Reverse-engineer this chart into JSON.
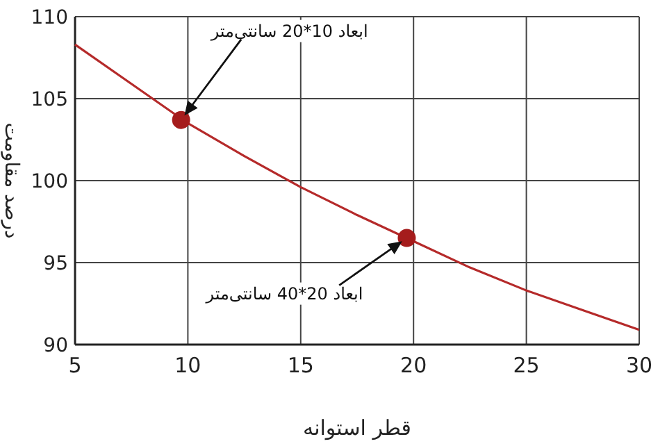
{
  "chart_data": {
    "type": "line",
    "xlabel": "قطر استوانه",
    "ylabel": "درصد مقاومت",
    "xlim": [
      5,
      30
    ],
    "ylim": [
      90,
      110
    ],
    "xticks": [
      5,
      10,
      15,
      20,
      25,
      30
    ],
    "yticks": [
      90,
      95,
      100,
      105,
      110
    ],
    "grid": true,
    "series": [
      {
        "type": "line",
        "color": "#b52a2a",
        "x": [
          5,
          7.5,
          10,
          12.5,
          15,
          17.5,
          20,
          22.5,
          25,
          27.5,
          30
        ],
        "values": [
          108.3,
          105.9,
          103.5,
          101.5,
          99.6,
          97.9,
          96.3,
          94.7,
          93.3,
          92.1,
          90.9
        ]
      },
      {
        "type": "scatter",
        "color": "#a51c1c",
        "marker": "circle",
        "x": [
          9.7,
          19.7
        ],
        "values": [
          103.7,
          96.5
        ]
      }
    ],
    "annotations": [
      "ابعاد 10*20 سانتی‌متر",
      "ابعاد 20*40 سانتی‌متر"
    ]
  }
}
